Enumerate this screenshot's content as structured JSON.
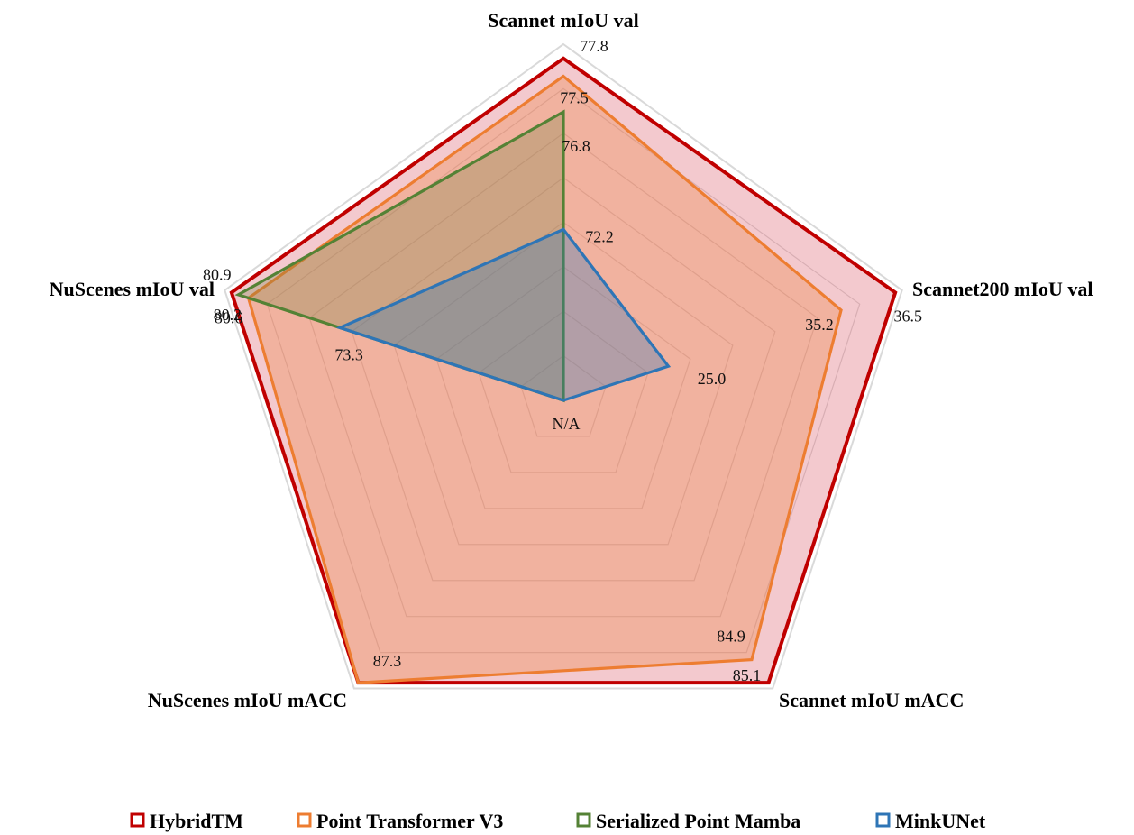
{
  "chart_data": {
    "type": "radar",
    "axes": [
      "Scannet mIoU val",
      "Scannet200 mIoU val",
      "Scannet mIoU mACC",
      "NuScenes mIoU mACC",
      "NuScenes mIoU val"
    ],
    "grid_levels": 8,
    "series": [
      {
        "name": "HybridTM",
        "color": "#c00000",
        "fill": "rgba(214, 76, 92, 0.30)",
        "values": [
          0.96,
          0.98,
          0.98,
          0.98,
          0.98
        ],
        "labels": [
          "77.8",
          "36.5",
          "85.1",
          "",
          "80.9"
        ]
      },
      {
        "name": "Point Transformer V3",
        "color": "#ed7d31",
        "fill": "rgba(237, 125, 49, 0.30)",
        "values": [
          0.91,
          0.82,
          0.9,
          0.98,
          0.93
        ],
        "labels": [
          "77.5",
          "35.2",
          "84.9",
          "87.3",
          "80.6"
        ]
      },
      {
        "name": "Serialized Point Mamba",
        "color": "#548235",
        "fill": "rgba(112, 128, 64, 0.28)",
        "values": [
          0.81,
          0.0,
          0.0,
          0.0,
          0.96
        ],
        "labels": [
          "76.8",
          "",
          "",
          "",
          "80.2"
        ]
      },
      {
        "name": "MinkUNet",
        "color": "#2e75b6",
        "fill": "rgba(46, 117, 182, 0.32)",
        "values": [
          0.48,
          0.31,
          0.0,
          0.0,
          0.66
        ],
        "labels": [
          "72.2",
          "25.0",
          "N/A",
          "",
          "73.3"
        ]
      }
    ]
  }
}
